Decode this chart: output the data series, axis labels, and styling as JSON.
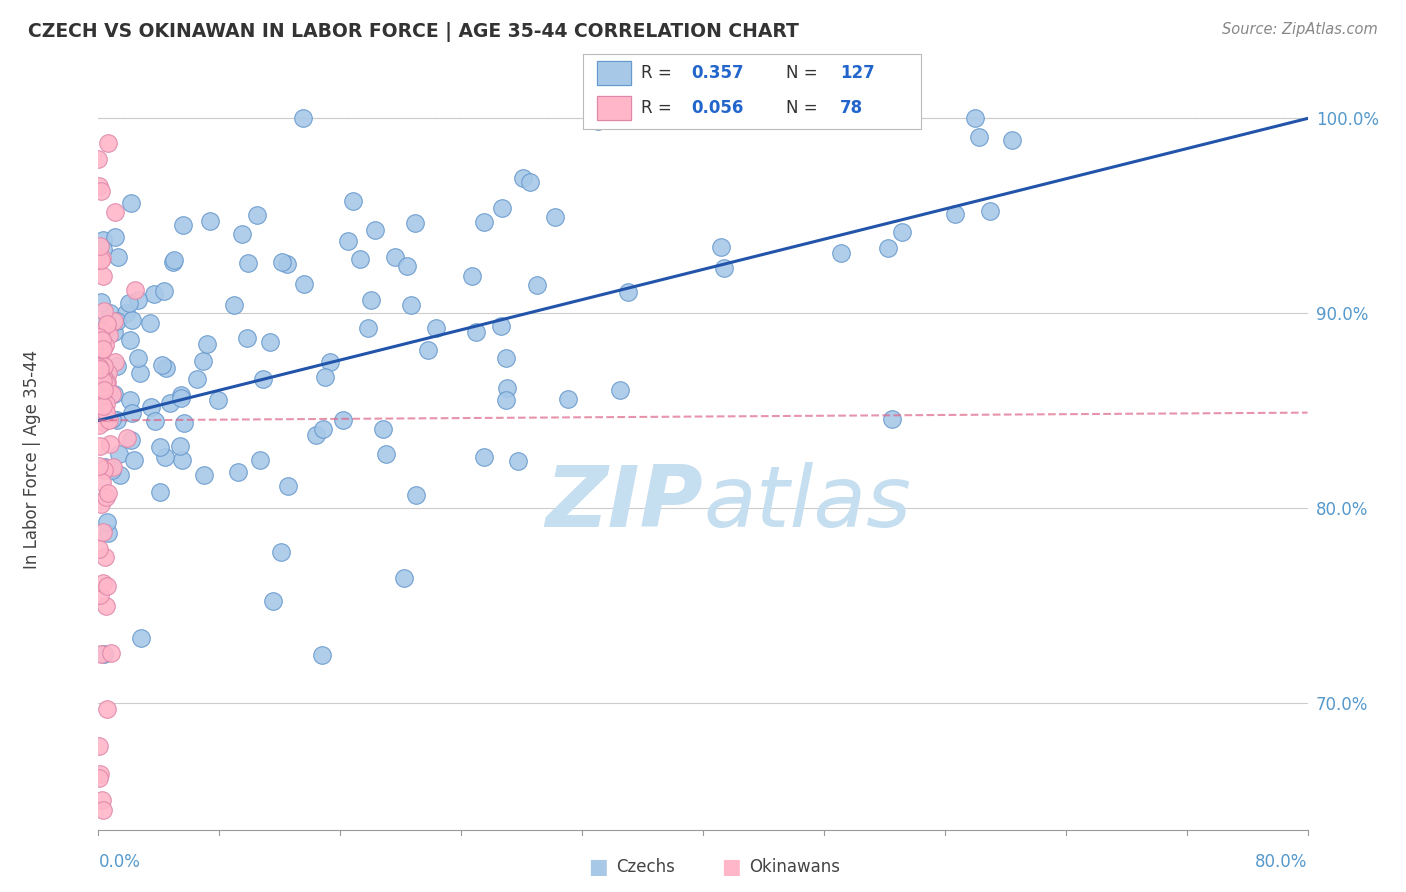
{
  "title": "CZECH VS OKINAWAN IN LABOR FORCE | AGE 35-44 CORRELATION CHART",
  "source": "Source: ZipAtlas.com",
  "ylabel": "In Labor Force | Age 35-44",
  "xlim": [
    0.0,
    0.8
  ],
  "ylim": [
    0.635,
    1.015
  ],
  "czech_R": 0.357,
  "czech_N": 127,
  "okinawan_R": 0.056,
  "okinawan_N": 78,
  "blue_color": "#A8C8E8",
  "blue_edge": "#6699CC",
  "blue_dark": "#2255AA",
  "pink_color": "#FFB6C8",
  "pink_edge": "#DD88AA",
  "pink_trend": "#DD6688",
  "legend_text_color": "#2266CC",
  "watermark_zip": "#C5DEF0",
  "watermark_atlas": "#C5DEF0",
  "background": "#FFFFFF",
  "right_tick_color": "#5599CC",
  "seed": 42
}
